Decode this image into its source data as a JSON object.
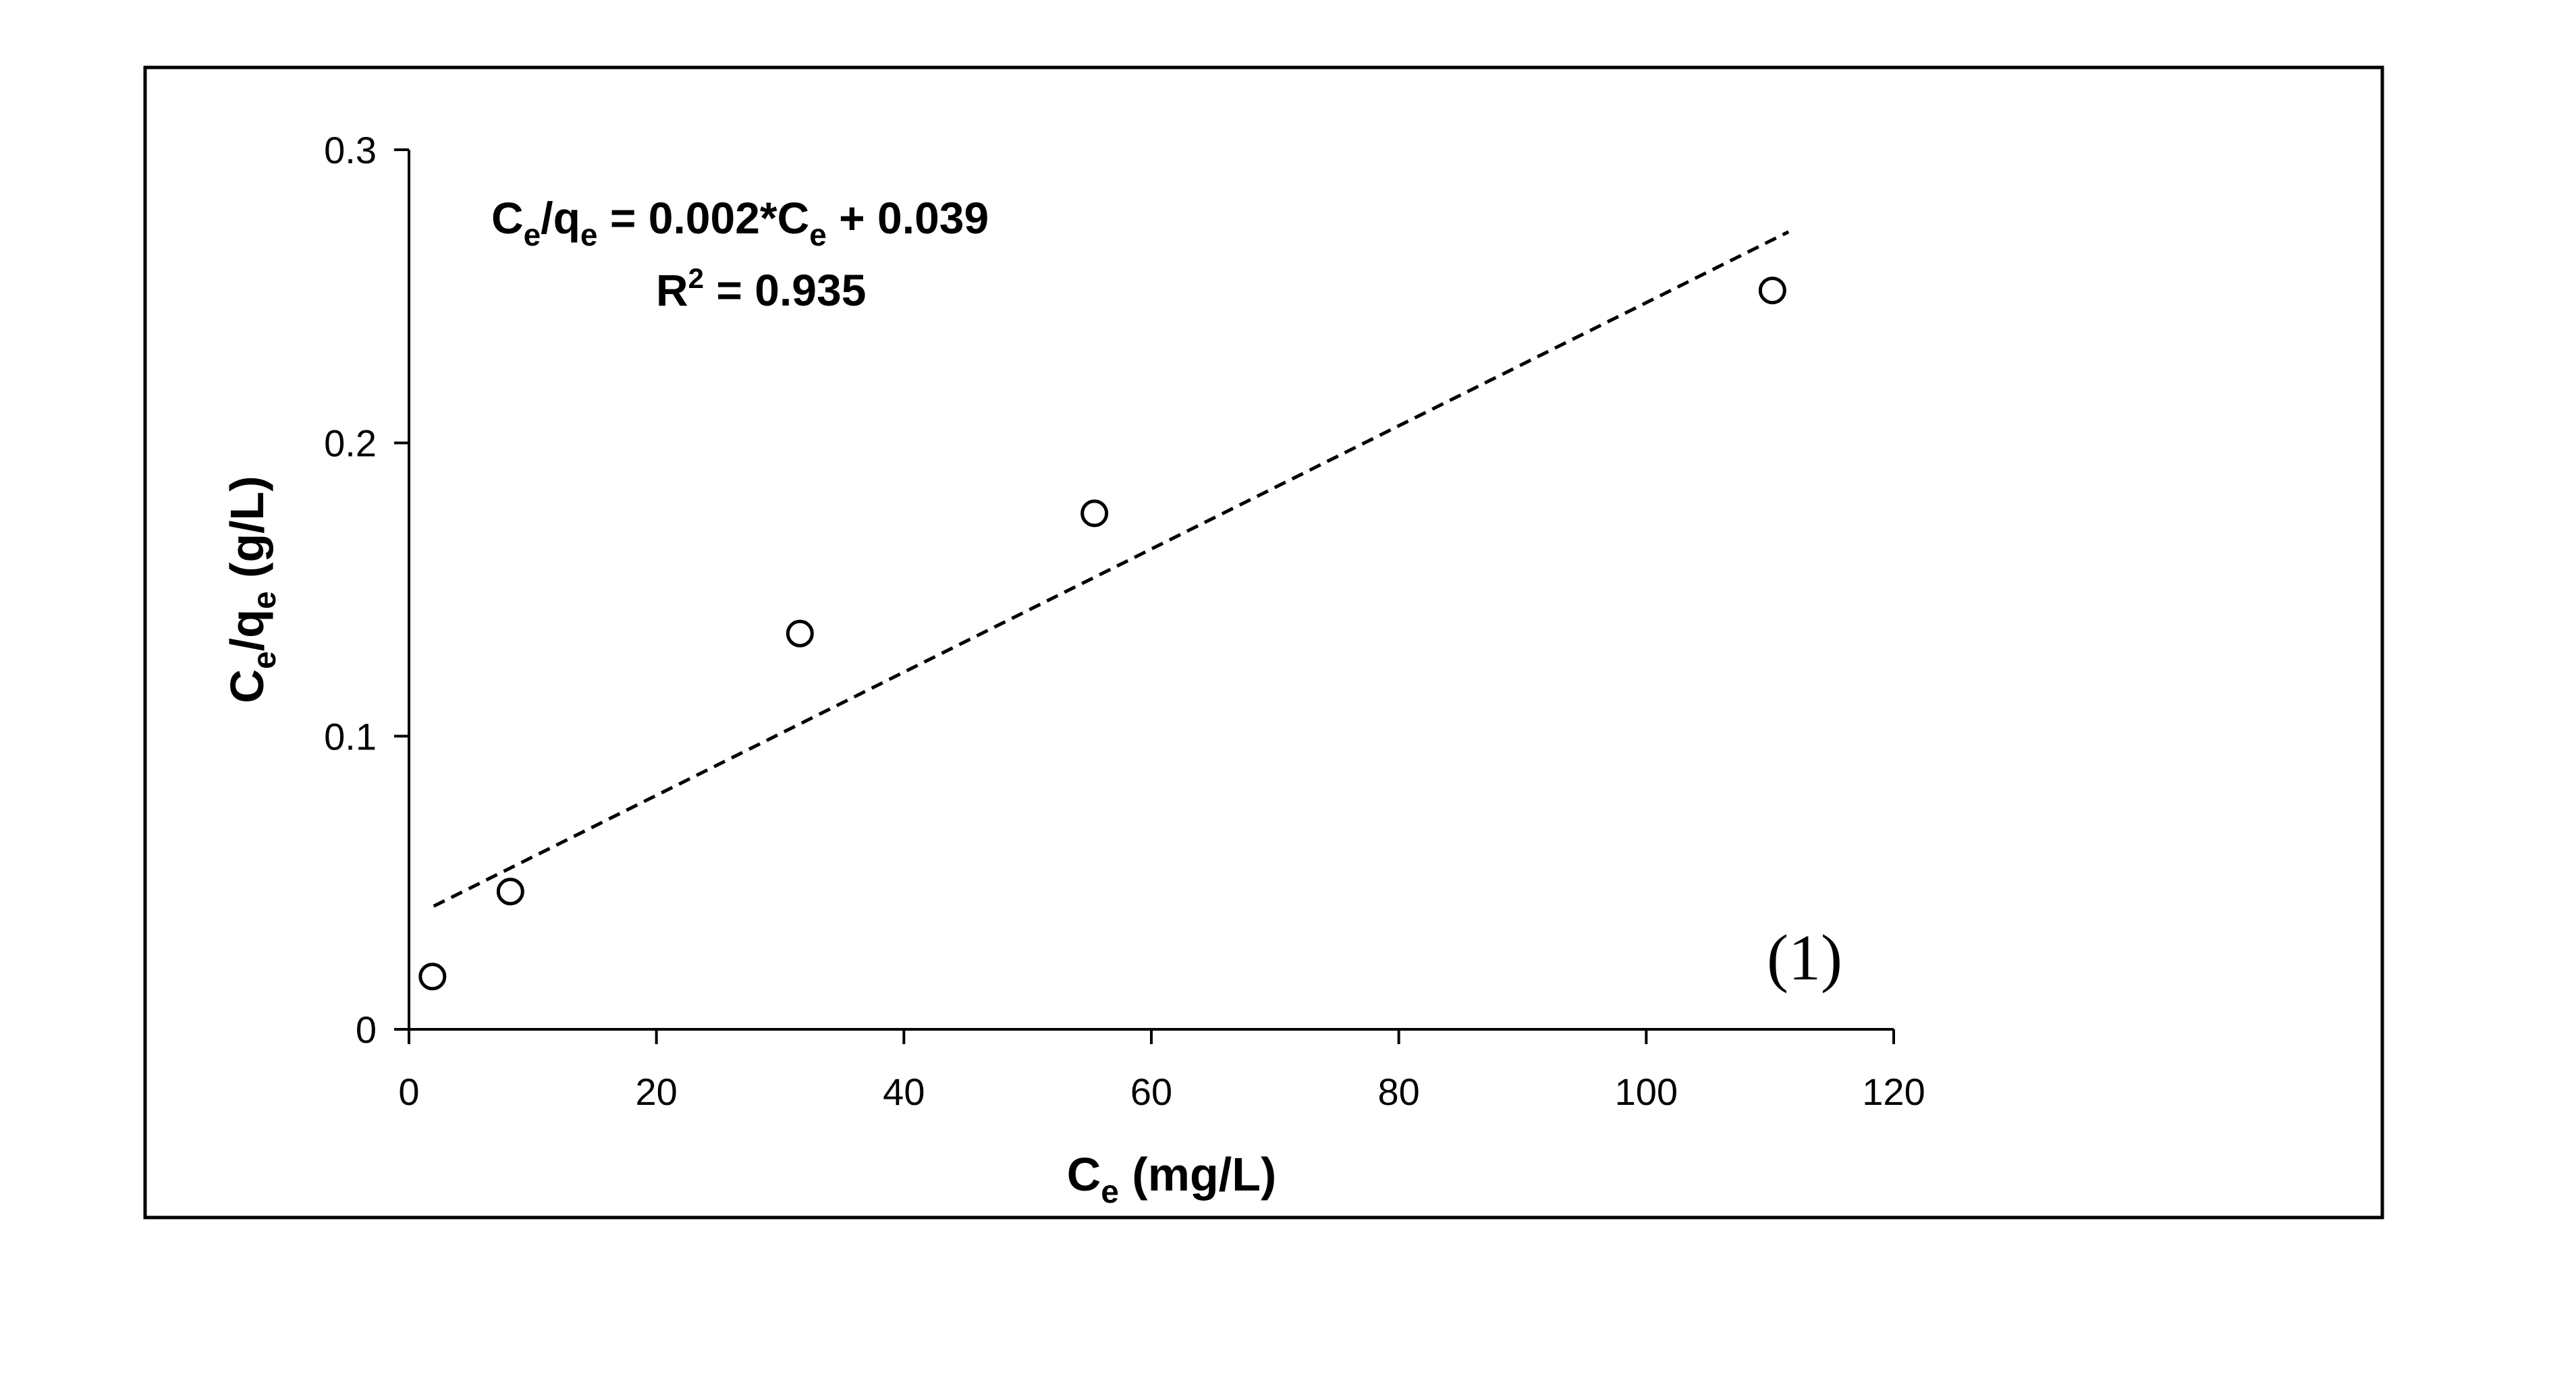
{
  "chart_data": {
    "type": "scatter",
    "xlabel": {
      "main": "C",
      "sub": "e",
      "tail": " (mg/L)"
    },
    "ylabel": {
      "main": "C",
      "sub": "e",
      "mid": "/q",
      "sub2": "e",
      "tail": " (g/L)"
    },
    "xlim": [
      0,
      120
    ],
    "ylim": [
      0,
      0.3
    ],
    "xticks": [
      "0",
      "20",
      "40",
      "60",
      "80",
      "100",
      "120"
    ],
    "xtick_values": [
      0,
      20,
      40,
      60,
      80,
      100,
      120
    ],
    "yticks": [
      "0",
      "0.1",
      "0.2",
      "0.3"
    ],
    "ytick_values": [
      0,
      0.1,
      0.2,
      0.3
    ],
    "grid": false,
    "series": [
      {
        "marker": "open-circle",
        "x": [
          1.9,
          8.2,
          31.6,
          55.4,
          110.2
        ],
        "y": [
          0.018,
          0.047,
          0.135,
          0.176,
          0.252
        ]
      }
    ],
    "trendline": {
      "style": "dashed",
      "x": [
        2,
        111.5
      ],
      "y": [
        0.042,
        0.272
      ]
    },
    "equation": {
      "line1": {
        "a": "C",
        "a_sub": "e",
        "b": "/q",
        "b_sub": "e",
        "c": " = 0.002*C",
        "c_sub": "e",
        "d": " + 0.039"
      },
      "line2": {
        "a": "R",
        "sup": "2",
        "b": " = 0.935"
      }
    },
    "panel_label": "(1)"
  }
}
